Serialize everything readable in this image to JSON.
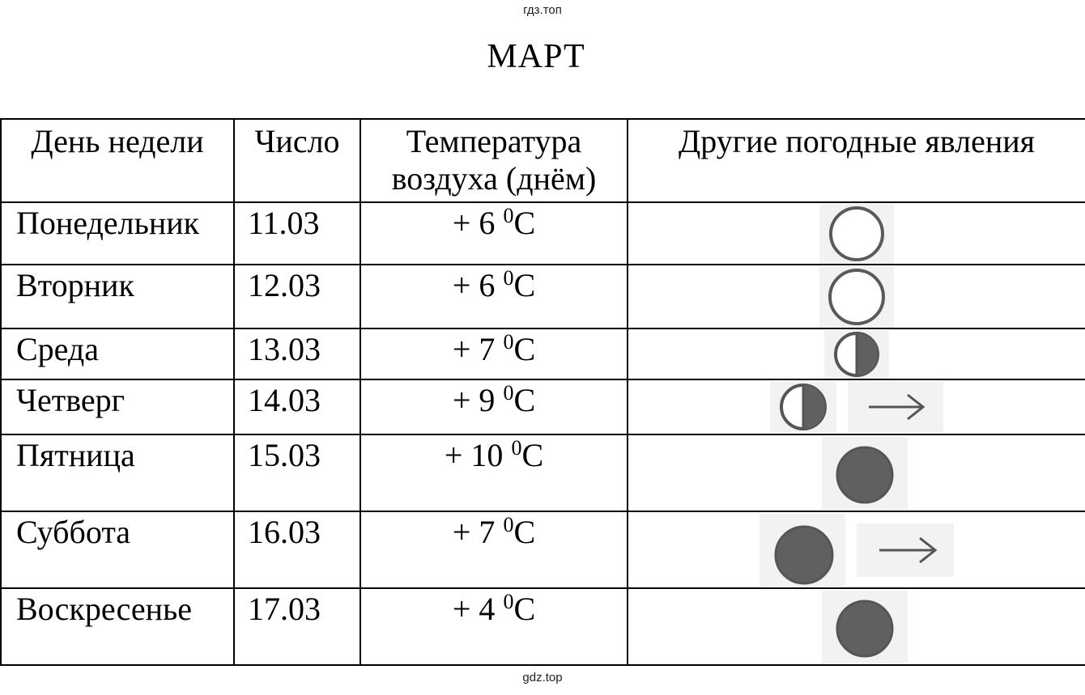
{
  "watermark_top": "гдз.топ",
  "watermark_bottom": "gdz.top",
  "title": "МАРТ",
  "headers": {
    "day": "День недели",
    "number": "Число",
    "temperature_line1": "Температура",
    "temperature_line2": "воздуха (днём)",
    "other": "Другие погодные явления"
  },
  "rows": [
    {
      "day": "Понедельник",
      "number": "11.03",
      "temp_prefix": "+ 6 ",
      "temp_sup": "0",
      "temp_unit": "C",
      "icons": [
        "clear-sky-icon"
      ]
    },
    {
      "day": "Вторник",
      "number": "12.03",
      "temp_prefix": "+ 6 ",
      "temp_sup": "0",
      "temp_unit": "C",
      "icons": [
        "clear-sky-icon"
      ]
    },
    {
      "day": "Среда",
      "number": "13.03",
      "temp_prefix": "+ 7 ",
      "temp_sup": "0",
      "temp_unit": "C",
      "icons": [
        "partly-cloudy-icon"
      ]
    },
    {
      "day": "Четверг",
      "number": "14.03",
      "temp_prefix": "+ 9 ",
      "temp_sup": "0",
      "temp_unit": "C",
      "icons": [
        "partly-cloudy-icon",
        "wind-arrow-icon"
      ]
    },
    {
      "day": "Пятница",
      "number": "15.03",
      "temp_prefix": "+ 10 ",
      "temp_sup": "0",
      "temp_unit": "C",
      "icons": [
        "overcast-icon"
      ]
    },
    {
      "day": "Суббота",
      "number": "16.03",
      "temp_prefix": "+ 7 ",
      "temp_sup": "0",
      "temp_unit": "C",
      "icons": [
        "overcast-icon",
        "wind-arrow-icon"
      ]
    },
    {
      "day": "Воскресенье",
      "number": "17.03",
      "temp_prefix": "+ 4 ",
      "temp_sup": "0",
      "temp_unit": "C",
      "icons": [
        "overcast-icon"
      ]
    }
  ],
  "colors": {
    "symbol_fill": "#5f6060",
    "symbol_stroke": "#555555",
    "icon_bg": "#f1f3f3"
  }
}
